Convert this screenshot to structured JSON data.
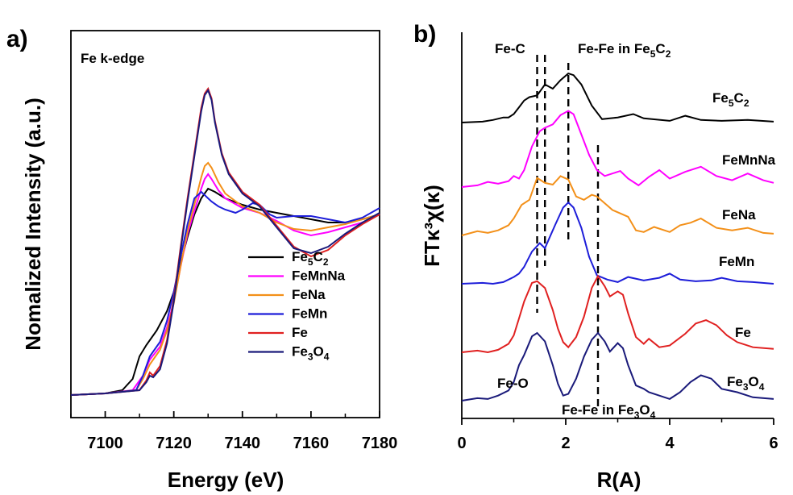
{
  "chart_data": [
    {
      "panel": "a)",
      "type": "line",
      "annotation": "Fe k-edge",
      "xlabel": "Energy (eV)",
      "ylabel": "Nomalized Intensity (a.u.)",
      "xlim": [
        7090,
        7180
      ],
      "xticks": [
        7100,
        7120,
        7140,
        7160,
        7180
      ],
      "legend_placement": "bottom-right",
      "series": [
        {
          "name": "Fe5C2",
          "base": "Fe",
          "subs": [
            "5",
            "2"
          ],
          "after": [
            "C",
            ""
          ],
          "color": "#000000",
          "x": [
            7090,
            7100,
            7105,
            7108,
            7110,
            7112,
            7115,
            7118,
            7120,
            7122,
            7124,
            7126,
            7128,
            7130,
            7132,
            7135,
            7140,
            7145,
            7150,
            7155,
            7160,
            7165,
            7170,
            7175,
            7180
          ],
          "y": [
            0.0,
            0.01,
            0.03,
            0.1,
            0.24,
            0.31,
            0.4,
            0.52,
            0.64,
            0.82,
            0.98,
            1.12,
            1.22,
            1.28,
            1.26,
            1.22,
            1.18,
            1.15,
            1.13,
            1.11,
            1.09,
            1.07,
            1.07,
            1.09,
            1.12
          ]
        },
        {
          "name": "FeMnNa",
          "color": "#ff00ff",
          "x": [
            7090,
            7100,
            7108,
            7111,
            7113,
            7116,
            7118,
            7120,
            7122,
            7124,
            7126,
            7128,
            7129,
            7130,
            7131,
            7133,
            7135,
            7140,
            7145,
            7150,
            7155,
            7160,
            7165,
            7170,
            7175,
            7180
          ],
          "y": [
            0.0,
            0.01,
            0.03,
            0.12,
            0.22,
            0.3,
            0.42,
            0.58,
            0.8,
            1.0,
            1.14,
            1.28,
            1.34,
            1.37,
            1.34,
            1.27,
            1.22,
            1.16,
            1.13,
            1.08,
            1.02,
            0.99,
            1.01,
            1.04,
            1.07,
            1.12
          ]
        },
        {
          "name": "FeNa",
          "color": "#f39019",
          "x": [
            7090,
            7100,
            7109,
            7111,
            7113,
            7116,
            7118,
            7120,
            7122,
            7124,
            7126,
            7128,
            7129,
            7130,
            7131,
            7133,
            7135,
            7140,
            7145,
            7150,
            7155,
            7160,
            7165,
            7170,
            7175,
            7180
          ],
          "y": [
            0.0,
            0.01,
            0.03,
            0.1,
            0.19,
            0.28,
            0.4,
            0.57,
            0.8,
            1.02,
            1.18,
            1.35,
            1.42,
            1.44,
            1.41,
            1.32,
            1.25,
            1.17,
            1.13,
            1.07,
            1.03,
            1.02,
            1.04,
            1.06,
            1.09,
            1.12
          ]
        },
        {
          "name": "FeMn",
          "color": "#1e1ed9",
          "x": [
            7090,
            7100,
            7109,
            7111,
            7113,
            7116,
            7118,
            7120,
            7122,
            7124,
            7126,
            7128,
            7129,
            7130,
            7131,
            7133,
            7135,
            7138,
            7140,
            7143,
            7145,
            7148,
            7150,
            7155,
            7160,
            7165,
            7170,
            7175,
            7180
          ],
          "y": [
            0.0,
            0.01,
            0.03,
            0.12,
            0.24,
            0.33,
            0.46,
            0.64,
            0.86,
            1.06,
            1.22,
            1.26,
            1.24,
            1.22,
            1.2,
            1.17,
            1.15,
            1.13,
            1.15,
            1.19,
            1.18,
            1.12,
            1.1,
            1.11,
            1.11,
            1.09,
            1.07,
            1.1,
            1.16
          ]
        },
        {
          "name": "Fe",
          "color": "#e02020",
          "x": [
            7090,
            7100,
            7110,
            7112,
            7113,
            7114,
            7116,
            7118,
            7120,
            7122,
            7124,
            7126,
            7128,
            7129,
            7130,
            7131,
            7132,
            7134,
            7136,
            7140,
            7145,
            7150,
            7155,
            7160,
            7165,
            7170,
            7175,
            7180
          ],
          "y": [
            0.0,
            0.01,
            0.03,
            0.09,
            0.14,
            0.12,
            0.18,
            0.34,
            0.6,
            0.92,
            1.22,
            1.5,
            1.78,
            1.87,
            1.9,
            1.84,
            1.7,
            1.5,
            1.38,
            1.26,
            1.18,
            1.05,
            0.92,
            0.86,
            0.9,
            0.99,
            1.06,
            1.12
          ]
        },
        {
          "name": "Fe3O4",
          "base": "Fe",
          "subs": [
            "3",
            "4"
          ],
          "after": [
            "O",
            ""
          ],
          "color": "#1a1a7a",
          "x": [
            7090,
            7100,
            7110,
            7112,
            7113,
            7114,
            7116,
            7118,
            7120,
            7122,
            7124,
            7126,
            7128,
            7129,
            7130,
            7131,
            7132,
            7134,
            7136,
            7140,
            7145,
            7150,
            7155,
            7160,
            7165,
            7170,
            7175,
            7180
          ],
          "y": [
            0.0,
            0.01,
            0.03,
            0.08,
            0.12,
            0.11,
            0.16,
            0.32,
            0.58,
            0.9,
            1.2,
            1.48,
            1.76,
            1.86,
            1.89,
            1.83,
            1.69,
            1.49,
            1.37,
            1.25,
            1.17,
            1.04,
            0.91,
            0.88,
            0.92,
            1.0,
            1.07,
            1.13
          ]
        }
      ]
    },
    {
      "panel": "b)",
      "type": "line",
      "xlabel": "R(A)",
      "ylabel": "FTκ³χ(κ)",
      "xlim": [
        0,
        6
      ],
      "xticks": [
        0,
        2,
        4,
        6
      ],
      "vlines": [
        1.45,
        1.6,
        2.05,
        2.62
      ],
      "annotations": [
        "Fe-C",
        "Fe-Fe in Fe5C2",
        "Fe-O",
        "Fe-Fe in Fe3O4"
      ],
      "series": [
        {
          "name": "Fe5C2",
          "base": "Fe",
          "subs": [
            "5",
            "2"
          ],
          "after": [
            "C",
            ""
          ],
          "color": "#000000",
          "x": [
            0,
            0.4,
            0.6,
            0.8,
            0.9,
            1.0,
            1.1,
            1.2,
            1.3,
            1.45,
            1.6,
            1.75,
            1.9,
            2.05,
            2.15,
            2.3,
            2.5,
            2.7,
            3.0,
            3.3,
            3.5,
            4.0,
            4.3,
            4.6,
            5.0,
            5.5,
            6.0
          ],
          "y": [
            0.0,
            0.01,
            0.03,
            0.06,
            0.06,
            0.1,
            0.18,
            0.26,
            0.3,
            0.32,
            0.45,
            0.4,
            0.5,
            0.58,
            0.56,
            0.45,
            0.2,
            0.04,
            0.06,
            0.1,
            0.05,
            0.02,
            0.08,
            0.03,
            0.02,
            0.03,
            0.01
          ]
        },
        {
          "name": "FeMnNa",
          "color": "#ff00ff",
          "x": [
            0,
            0.3,
            0.5,
            0.7,
            0.9,
            1.0,
            1.1,
            1.2,
            1.35,
            1.5,
            1.6,
            1.75,
            1.9,
            2.05,
            2.15,
            2.3,
            2.45,
            2.6,
            2.75,
            2.9,
            3.05,
            3.2,
            3.4,
            3.6,
            3.8,
            4.0,
            4.3,
            4.6,
            4.9,
            5.2,
            5.5,
            5.8,
            6.0
          ],
          "y": [
            0.0,
            0.02,
            0.06,
            0.04,
            0.07,
            0.13,
            0.1,
            0.2,
            0.48,
            0.66,
            0.7,
            0.74,
            0.85,
            0.9,
            0.86,
            0.62,
            0.38,
            0.2,
            0.13,
            0.16,
            0.19,
            0.1,
            0.02,
            0.12,
            0.2,
            0.1,
            0.18,
            0.24,
            0.13,
            0.08,
            0.16,
            0.08,
            0.05
          ]
        },
        {
          "name": "FeNa",
          "color": "#f39019",
          "x": [
            0,
            0.3,
            0.5,
            0.7,
            0.9,
            1.0,
            1.15,
            1.3,
            1.45,
            1.6,
            1.75,
            1.9,
            2.05,
            2.2,
            2.35,
            2.5,
            2.6,
            2.75,
            2.9,
            3.05,
            3.2,
            3.35,
            3.5,
            3.7,
            4.0,
            4.2,
            4.4,
            4.6,
            4.9,
            5.2,
            5.5,
            5.8,
            6.0
          ],
          "y": [
            0.0,
            0.05,
            0.03,
            0.06,
            0.12,
            0.2,
            0.36,
            0.42,
            0.68,
            0.62,
            0.6,
            0.7,
            0.66,
            0.46,
            0.42,
            0.48,
            0.46,
            0.38,
            0.3,
            0.26,
            0.22,
            0.06,
            0.04,
            0.1,
            0.04,
            0.12,
            0.15,
            0.2,
            0.09,
            0.06,
            0.09,
            0.03,
            0.02
          ]
        },
        {
          "name": "FeMn",
          "color": "#1e1ed9",
          "x": [
            0,
            0.4,
            0.6,
            0.8,
            1.0,
            1.1,
            1.2,
            1.35,
            1.5,
            1.6,
            1.7,
            1.8,
            1.95,
            2.05,
            2.15,
            2.3,
            2.45,
            2.6,
            2.8,
            3.0,
            3.2,
            3.5,
            3.8,
            4.0,
            4.2,
            4.5,
            4.8,
            5.0,
            5.3,
            5.6,
            6.0
          ],
          "y": [
            0.0,
            0.01,
            0.0,
            0.02,
            0.08,
            0.12,
            0.2,
            0.38,
            0.48,
            0.42,
            0.56,
            0.7,
            0.9,
            0.96,
            0.9,
            0.66,
            0.32,
            0.1,
            0.05,
            0.02,
            0.08,
            0.04,
            0.07,
            0.12,
            0.05,
            0.03,
            0.04,
            0.07,
            0.03,
            0.02,
            0.0
          ]
        },
        {
          "name": "Fe",
          "color": "#e02020",
          "x": [
            0,
            0.3,
            0.5,
            0.7,
            0.9,
            1.0,
            1.1,
            1.2,
            1.35,
            1.45,
            1.6,
            1.75,
            1.85,
            1.95,
            2.05,
            2.2,
            2.35,
            2.5,
            2.62,
            2.75,
            2.85,
            3.0,
            3.1,
            3.2,
            3.35,
            3.5,
            3.6,
            3.8,
            4.0,
            4.3,
            4.5,
            4.7,
            4.9,
            5.1,
            5.3,
            5.6,
            6.0
          ],
          "y": [
            0.0,
            0.02,
            0.0,
            0.03,
            0.1,
            0.2,
            0.4,
            0.6,
            0.82,
            0.84,
            0.76,
            0.5,
            0.28,
            0.12,
            0.06,
            0.18,
            0.42,
            0.76,
            0.9,
            0.78,
            0.66,
            0.72,
            0.68,
            0.46,
            0.18,
            0.1,
            0.16,
            0.06,
            0.08,
            0.22,
            0.34,
            0.38,
            0.32,
            0.2,
            0.12,
            0.06,
            0.04
          ]
        },
        {
          "name": "Fe3O4",
          "base": "Fe",
          "subs": [
            "3",
            "4"
          ],
          "after": [
            "O",
            ""
          ],
          "color": "#1a1a7a",
          "x": [
            0,
            0.3,
            0.5,
            0.7,
            0.9,
            1.0,
            1.1,
            1.2,
            1.35,
            1.45,
            1.6,
            1.75,
            1.85,
            1.95,
            2.05,
            2.2,
            2.35,
            2.5,
            2.62,
            2.75,
            2.85,
            3.0,
            3.1,
            3.2,
            3.35,
            3.5,
            3.6,
            3.8,
            4.0,
            4.2,
            4.4,
            4.6,
            4.8,
            5.0,
            5.3,
            5.6,
            6.0
          ],
          "y": [
            0.0,
            0.03,
            0.02,
            0.06,
            0.12,
            0.22,
            0.42,
            0.54,
            0.76,
            0.8,
            0.7,
            0.42,
            0.2,
            0.06,
            0.08,
            0.26,
            0.52,
            0.72,
            0.8,
            0.7,
            0.58,
            0.68,
            0.62,
            0.42,
            0.18,
            0.14,
            0.1,
            0.06,
            0.02,
            0.1,
            0.22,
            0.3,
            0.26,
            0.14,
            0.1,
            0.04,
            0.02
          ]
        }
      ]
    }
  ]
}
